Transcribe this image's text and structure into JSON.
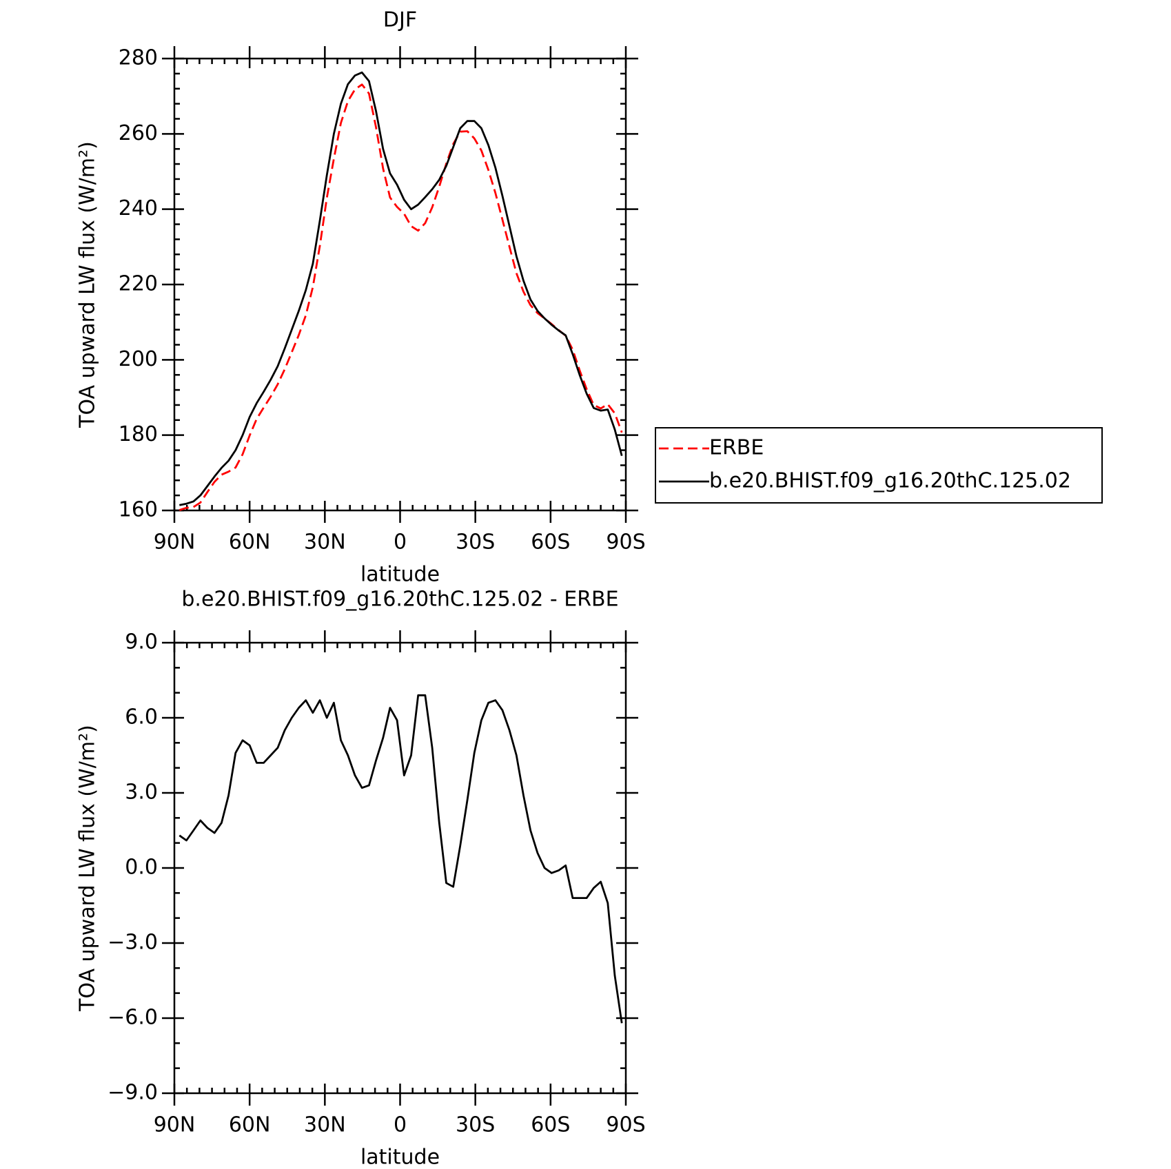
{
  "chart_data": [
    {
      "type": "line",
      "title": "DJF",
      "xlabel": "latitude",
      "ylabel": "TOA upward LW flux (W/m²)",
      "x": [
        88.0,
        85.2,
        82.4,
        79.6,
        76.8,
        74.0,
        71.2,
        68.4,
        65.6,
        62.8,
        60.0,
        57.2,
        54.4,
        51.6,
        48.8,
        46.0,
        43.2,
        40.4,
        37.6,
        34.8,
        32.0,
        29.2,
        26.4,
        23.6,
        20.8,
        18.0,
        15.2,
        12.4,
        9.6,
        6.8,
        4.0,
        1.2,
        -1.6,
        -4.4,
        -7.2,
        -10.0,
        -12.8,
        -15.6,
        -18.4,
        -21.2,
        -24.0,
        -26.8,
        -29.6,
        -32.4,
        -35.2,
        -38.0,
        -40.8,
        -43.6,
        -46.4,
        -49.2,
        -52.0,
        -54.8,
        -57.6,
        -60.4,
        -63.2,
        -66.0,
        -68.8,
        -71.6,
        -74.4,
        -77.2,
        -80.0,
        -82.8,
        -85.6,
        -88.4
      ],
      "series": [
        {
          "name": "ERBE",
          "color": "#ff0000",
          "linestyle": "dashed",
          "values": [
            160.1,
            160.7,
            160.9,
            162.1,
            164.9,
            167.6,
            169.5,
            170.3,
            171.4,
            174.9,
            179.9,
            184.3,
            187.3,
            190.2,
            193.5,
            197.5,
            202,
            206.6,
            211.8,
            219.3,
            230.3,
            243,
            253.4,
            262.9,
            268.7,
            271.8,
            273.1,
            270.7,
            261.7,
            250.8,
            243.1,
            240.6,
            238.8,
            235.5,
            234.3,
            236.3,
            240.5,
            246,
            252.1,
            257.3,
            260.6,
            260.7,
            258.8,
            255.6,
            250.4,
            244.3,
            237.2,
            230,
            223,
            218.1,
            214.5,
            212.4,
            211,
            209.5,
            207.9,
            206.4,
            202.7,
            197.2,
            192.2,
            188,
            187.1,
            188.2,
            185.8,
            180.7
          ]
        },
        {
          "name": "b.e20.BHIST.f09_g16.20thC.125.02",
          "color": "#000000",
          "linestyle": "solid",
          "values": [
            161.4,
            161.8,
            162.4,
            164,
            166.5,
            169,
            171.3,
            173.2,
            176,
            180,
            184.8,
            188.5,
            191.5,
            194.7,
            198.3,
            203,
            208,
            213,
            218.5,
            225.5,
            237,
            249,
            260,
            268,
            273.2,
            275.5,
            276.3,
            274,
            266,
            256,
            249.5,
            246.5,
            242.5,
            240,
            241.2,
            243.2,
            245.3,
            247.8,
            251.5,
            256.5,
            261.5,
            263.4,
            263.4,
            261.5,
            257,
            251,
            243.5,
            235.5,
            227.5,
            221,
            216,
            213,
            211,
            209.3,
            207.8,
            206.5,
            201.5,
            196,
            191,
            187.2,
            186.5,
            186.8,
            181.5,
            174.5
          ]
        }
      ],
      "xlim": [
        90,
        -90
      ],
      "xticks": [
        {
          "value": 90,
          "label": "90N"
        },
        {
          "value": 60,
          "label": "60N"
        },
        {
          "value": 30,
          "label": "30N"
        },
        0,
        {
          "value": -30,
          "label": "30S"
        },
        {
          "value": -60,
          "label": "60S"
        },
        {
          "value": -90,
          "label": "90S"
        }
      ],
      "ylim": [
        160,
        280
      ],
      "yticks": [
        160,
        180,
        200,
        220,
        240,
        260,
        280
      ],
      "legend": "right"
    },
    {
      "type": "line",
      "title": "b.e20.BHIST.f09_g16.20thC.125.02 - ERBE",
      "xlabel": "latitude",
      "ylabel": "TOA upward LW flux (W/m²)",
      "x": [
        88.0,
        85.2,
        82.4,
        79.6,
        76.8,
        74.0,
        71.2,
        68.4,
        65.6,
        62.8,
        60.0,
        57.2,
        54.4,
        51.6,
        48.8,
        46.0,
        43.2,
        40.4,
        37.6,
        34.8,
        32.0,
        29.2,
        26.4,
        23.6,
        20.8,
        18.0,
        15.2,
        12.4,
        9.6,
        6.8,
        4.0,
        1.2,
        -1.6,
        -4.4,
        -7.2,
        -10.0,
        -12.8,
        -15.6,
        -18.4,
        -21.2,
        -24.0,
        -26.8,
        -29.6,
        -32.4,
        -35.2,
        -38.0,
        -40.8,
        -43.6,
        -46.4,
        -49.2,
        -52.0,
        -54.8,
        -57.6,
        -60.4,
        -63.2,
        -66.0,
        -68.8,
        -71.6,
        -74.4,
        -77.2,
        -80.0,
        -82.8,
        -85.6,
        -88.4
      ],
      "color": "#000000",
      "values": [
        1.3,
        1.1,
        1.5,
        1.9,
        1.6,
        1.4,
        1.8,
        2.9,
        4.6,
        5.1,
        4.9,
        4.2,
        4.2,
        4.5,
        4.8,
        5.5,
        6.0,
        6.4,
        6.7,
        6.2,
        6.7,
        6.0,
        6.6,
        5.1,
        4.5,
        3.7,
        3.2,
        3.3,
        4.3,
        5.2,
        6.4,
        5.9,
        3.7,
        4.5,
        6.9,
        6.9,
        4.8,
        1.8,
        -0.6,
        -0.75,
        0.9,
        2.7,
        4.6,
        5.9,
        6.6,
        6.7,
        6.3,
        5.5,
        4.5,
        2.9,
        1.5,
        0.6,
        0.0,
        -0.2,
        -0.1,
        0.1,
        -1.2,
        -1.2,
        -1.2,
        -0.8,
        -0.55,
        -1.4,
        -4.3,
        -6.2
      ],
      "xlim": [
        90,
        -90
      ],
      "xticks": [
        {
          "value": 90,
          "label": "90N"
        },
        {
          "value": 60,
          "label": "60N"
        },
        {
          "value": 30,
          "label": "30N"
        },
        0,
        {
          "value": -30,
          "label": "30S"
        },
        {
          "value": -60,
          "label": "60S"
        },
        {
          "value": -90,
          "label": "90S"
        }
      ],
      "ylim": [
        -9,
        9
      ],
      "yticks": [
        {
          "value": -9,
          "label": "−9.0"
        },
        {
          "value": -6,
          "label": "−6.0"
        },
        {
          "value": -3,
          "label": "−3.0"
        },
        {
          "value": 0,
          "label": "0.0"
        },
        {
          "value": 3,
          "label": "3.0"
        },
        {
          "value": 6,
          "label": "6.0"
        },
        {
          "value": 9,
          "label": "9.0"
        }
      ]
    }
  ]
}
